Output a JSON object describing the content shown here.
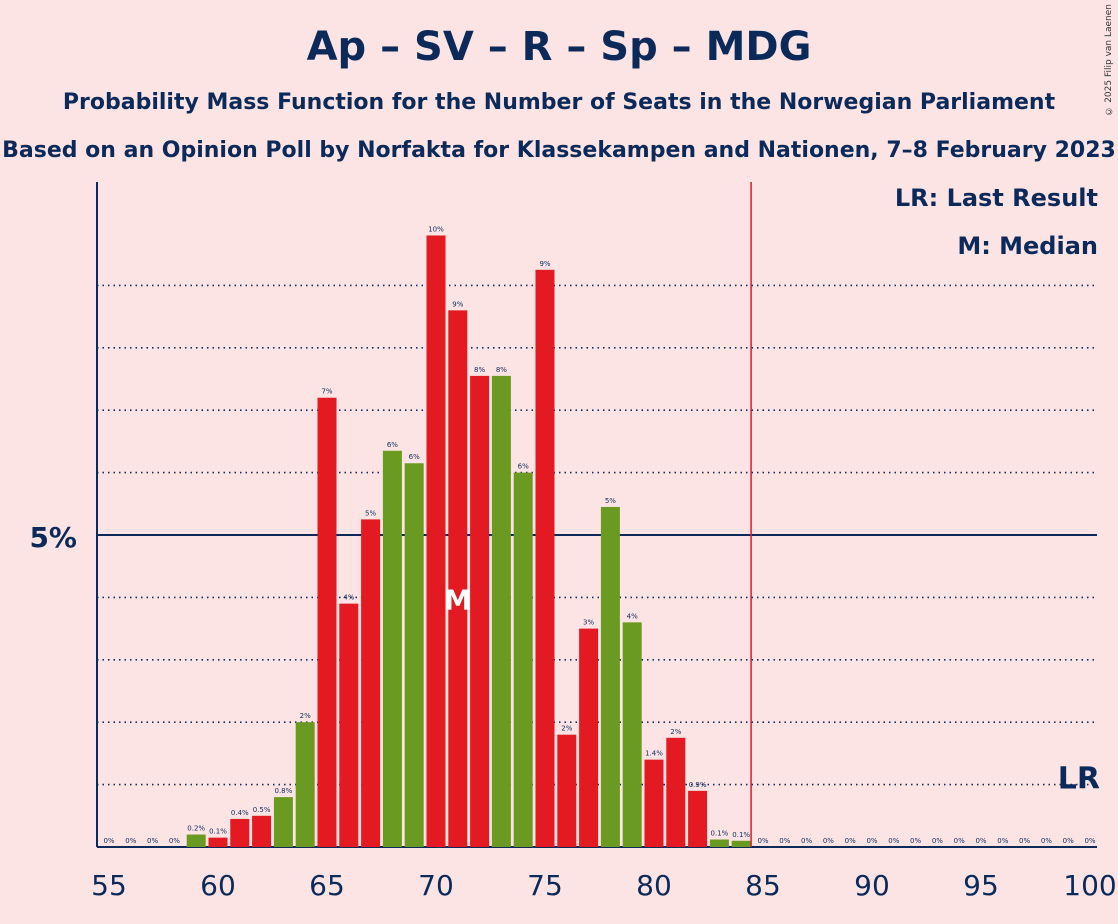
{
  "chart_data": {
    "type": "bar",
    "title": "Ap – SV – R – Sp – MDG",
    "subtitle": "Probability Mass Function for the Number of Seats in the Norwegian Parliament",
    "subtitle2": "Based on an Opinion Poll by Norfakta for Klassekampen and Nationen, 7–8 February 2023",
    "credit": "© 2025 Filip van Laenen",
    "legend": {
      "lr": "LR: Last Result",
      "m": "M: Median"
    },
    "majority_line": 85,
    "last_result": 100,
    "last_result_label": "LR",
    "median": 71,
    "median_label": "M",
    "y_tick_label": "5%",
    "ylim": [
      0,
      10.5
    ],
    "x_ticks": [
      "55",
      "60",
      "65",
      "70",
      "75",
      "80",
      "85",
      "90",
      "95",
      "100"
    ],
    "colors": {
      "red": "#e31a22",
      "green": "#6b9a22"
    },
    "bars": [
      {
        "seats": 55,
        "value": 0,
        "label": "0%",
        "color": "red"
      },
      {
        "seats": 56,
        "value": 0,
        "label": "0%",
        "color": "red"
      },
      {
        "seats": 57,
        "value": 0,
        "label": "0%",
        "color": "red"
      },
      {
        "seats": 58,
        "value": 0,
        "label": "0%",
        "color": "red"
      },
      {
        "seats": 59,
        "value": 0.2,
        "label": "0.2%",
        "color": "green"
      },
      {
        "seats": 60,
        "value": 0.15,
        "label": "0.1%",
        "color": "red"
      },
      {
        "seats": 61,
        "value": 0.45,
        "label": "0.4%",
        "color": "red"
      },
      {
        "seats": 62,
        "value": 0.5,
        "label": "0.5%",
        "color": "red"
      },
      {
        "seats": 63,
        "value": 0.8,
        "label": "0.8%",
        "color": "green"
      },
      {
        "seats": 64,
        "value": 2.0,
        "label": "2%",
        "color": "green"
      },
      {
        "seats": 65,
        "value": 7.2,
        "label": "7%",
        "color": "red"
      },
      {
        "seats": 66,
        "value": 3.9,
        "label": "4%",
        "color": "red"
      },
      {
        "seats": 67,
        "value": 5.25,
        "label": "5%",
        "color": "red"
      },
      {
        "seats": 68,
        "value": 6.35,
        "label": "6%",
        "color": "green"
      },
      {
        "seats": 69,
        "value": 6.15,
        "label": "6%",
        "color": "green"
      },
      {
        "seats": 70,
        "value": 9.8,
        "label": "10%",
        "color": "red"
      },
      {
        "seats": 71,
        "value": 8.6,
        "label": "9%",
        "color": "red"
      },
      {
        "seats": 72,
        "value": 7.55,
        "label": "8%",
        "color": "red"
      },
      {
        "seats": 73,
        "value": 7.55,
        "label": "8%",
        "color": "green"
      },
      {
        "seats": 74,
        "value": 6.0,
        "label": "6%",
        "color": "green"
      },
      {
        "seats": 75,
        "value": 9.25,
        "label": "9%",
        "color": "red"
      },
      {
        "seats": 76,
        "value": 1.8,
        "label": "2%",
        "color": "red"
      },
      {
        "seats": 77,
        "value": 3.5,
        "label": "3%",
        "color": "red"
      },
      {
        "seats": 78,
        "value": 5.45,
        "label": "5%",
        "color": "green"
      },
      {
        "seats": 79,
        "value": 3.6,
        "label": "4%",
        "color": "green"
      },
      {
        "seats": 80,
        "value": 1.4,
        "label": "1.4%",
        "color": "red"
      },
      {
        "seats": 81,
        "value": 1.75,
        "label": "2%",
        "color": "red"
      },
      {
        "seats": 82,
        "value": 0.9,
        "label": "0.9%",
        "color": "red"
      },
      {
        "seats": 83,
        "value": 0.12,
        "label": "0.1%",
        "color": "green"
      },
      {
        "seats": 84,
        "value": 0.1,
        "label": "0.1%",
        "color": "green"
      },
      {
        "seats": 85,
        "value": 0,
        "label": "0%",
        "color": "red"
      },
      {
        "seats": 86,
        "value": 0,
        "label": "0%",
        "color": "red"
      },
      {
        "seats": 87,
        "value": 0,
        "label": "0%",
        "color": "red"
      },
      {
        "seats": 88,
        "value": 0,
        "label": "0%",
        "color": "red"
      },
      {
        "seats": 89,
        "value": 0,
        "label": "0%",
        "color": "red"
      },
      {
        "seats": 90,
        "value": 0,
        "label": "0%",
        "color": "red"
      },
      {
        "seats": 91,
        "value": 0,
        "label": "0%",
        "color": "red"
      },
      {
        "seats": 92,
        "value": 0,
        "label": "0%",
        "color": "red"
      },
      {
        "seats": 93,
        "value": 0,
        "label": "0%",
        "color": "red"
      },
      {
        "seats": 94,
        "value": 0,
        "label": "0%",
        "color": "red"
      },
      {
        "seats": 95,
        "value": 0,
        "label": "0%",
        "color": "red"
      },
      {
        "seats": 96,
        "value": 0,
        "label": "0%",
        "color": "red"
      },
      {
        "seats": 97,
        "value": 0,
        "label": "0%",
        "color": "red"
      },
      {
        "seats": 98,
        "value": 0,
        "label": "0%",
        "color": "red"
      },
      {
        "seats": 99,
        "value": 0,
        "label": "0%",
        "color": "red"
      },
      {
        "seats": 100,
        "value": 0,
        "label": "0%",
        "color": "red"
      }
    ]
  }
}
